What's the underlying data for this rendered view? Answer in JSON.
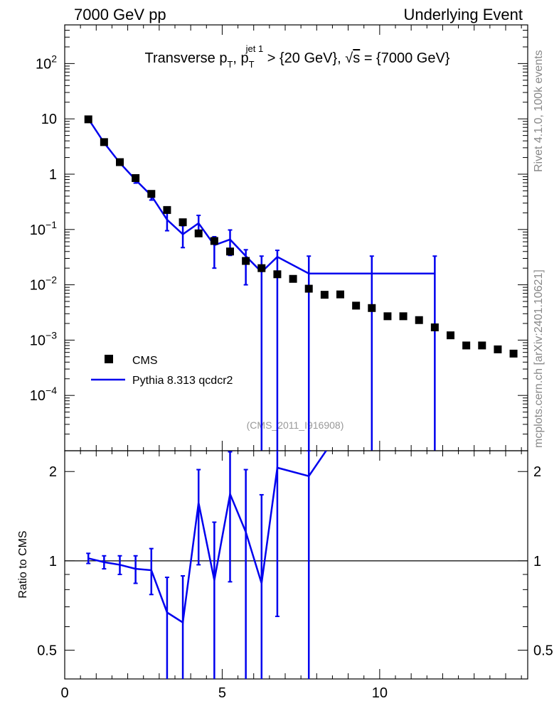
{
  "header": {
    "left": "7000 GeV pp",
    "right": "Underlying Event"
  },
  "side_labels": {
    "rivet": "Rivet 4.1.0,  100k events",
    "mcplots": "mcplots.cern.ch [arXiv:2401.10621]"
  },
  "analysis_id": "(CMS_2011_I916908)",
  "chart_data": [
    {
      "type": "scatter",
      "panel": "main",
      "title": "Transverse p_T, p_T^{jet 1} > {20 GeV}, √s = {7000 GeV}",
      "title_parts": {
        "t1": "Transverse p",
        "sub1": "T",
        "t2": ", p",
        "sup2": "jet 1",
        "sub2": "T",
        "t3": " > {20 GeV}, ",
        "sqrt": "√",
        "t4": "s",
        "t5": " = {7000 GeV}"
      },
      "yscale": "log",
      "ylim": [
        1e-05,
        500
      ],
      "xlim": [
        0,
        14.7
      ],
      "y_tick_labels": [
        {
          "value": 100,
          "base": "10",
          "exp": "2"
        },
        {
          "value": 10,
          "base": "10",
          "exp": ""
        },
        {
          "value": 1,
          "base": "1",
          "exp": ""
        },
        {
          "value": 0.1,
          "base": "10",
          "exp": "−1"
        },
        {
          "value": 0.01,
          "base": "10",
          "exp": "−2"
        },
        {
          "value": 0.001,
          "base": "10",
          "exp": "−3"
        },
        {
          "value": 0.0001,
          "base": "10",
          "exp": "−4"
        }
      ],
      "legend_position": "bottom-left",
      "series": [
        {
          "name": "CMS",
          "style": "markers",
          "color": "#000000",
          "x": [
            0.75,
            1.25,
            1.75,
            2.25,
            2.75,
            3.25,
            3.75,
            4.25,
            4.75,
            5.25,
            5.75,
            6.25,
            6.75,
            7.25,
            7.75,
            8.25,
            8.75,
            9.25,
            9.75,
            10.25,
            10.75,
            11.25,
            11.75,
            12.25,
            12.75,
            13.25,
            13.75,
            14.25
          ],
          "y": [
            9.8,
            3.8,
            1.65,
            0.85,
            0.44,
            0.225,
            0.135,
            0.085,
            0.062,
            0.04,
            0.027,
            0.02,
            0.0155,
            0.0128,
            0.0085,
            0.0066,
            0.0067,
            0.0042,
            0.0038,
            0.0027,
            0.0027,
            0.0023,
            0.0017,
            0.00122,
            0.0008,
            0.0008,
            0.00068,
            0.00057
          ]
        },
        {
          "name": "Pythia 8.313 qcdcr2",
          "style": "line",
          "color": "#0000ee",
          "x": [
            0.75,
            1.25,
            1.75,
            2.25,
            2.75,
            3.25,
            3.75,
            4.25,
            4.75,
            5.25,
            5.75,
            6.25,
            6.75,
            7.75,
            9.75,
            11.75
          ],
          "x_end": 11.75,
          "x_line_start": 7.75,
          "y": [
            10.0,
            3.7,
            1.6,
            0.79,
            0.41,
            0.15,
            0.082,
            0.13,
            0.052,
            0.066,
            0.033,
            0.017,
            0.032,
            0.016,
            0.016,
            0.016
          ],
          "y_err_low": [
            0.5,
            0.2,
            0.1,
            0.1,
            0.07,
            0.055,
            0.035,
            0.05,
            0.032,
            0.032,
            0.023,
            0.017,
            0.032,
            0.016,
            0.016,
            0.016
          ],
          "y_err_high": [
            0.5,
            0.2,
            0.1,
            0.1,
            0.07,
            0.055,
            0.035,
            0.05,
            0.022,
            0.032,
            0.01,
            0.016,
            0.01,
            0.017,
            0.017,
            0.017
          ]
        }
      ]
    },
    {
      "type": "line",
      "panel": "ratio",
      "ylabel": "Ratio to CMS",
      "yscale": "log",
      "ylim": [
        0.4,
        2.35
      ],
      "xlim": [
        0,
        14.7
      ],
      "y_tick_labels": [
        {
          "value": 2,
          "label": "2"
        },
        {
          "value": 1,
          "label": "1"
        },
        {
          "value": 0.5,
          "label": "0.5"
        }
      ],
      "x_tick_labels": [
        {
          "value": 0,
          "label": "0"
        },
        {
          "value": 5,
          "label": "5"
        },
        {
          "value": 10,
          "label": "10"
        }
      ],
      "reference_line": 1,
      "series": [
        {
          "name": "Pythia 8.313 qcdcr2 / CMS",
          "color": "#0000ee",
          "x": [
            0.75,
            1.25,
            1.75,
            2.25,
            2.75,
            3.25,
            3.75,
            4.25,
            4.75,
            5.25,
            5.75,
            6.25,
            6.75,
            7.75,
            8.3
          ],
          "y": [
            1.02,
            0.99,
            0.97,
            0.94,
            0.93,
            0.67,
            0.62,
            1.57,
            0.86,
            1.68,
            1.25,
            0.84,
            2.06,
            1.93,
            2.35
          ],
          "y_err_low": [
            0.04,
            0.05,
            0.07,
            0.1,
            0.16,
            0.29,
            0.32,
            0.6,
            0.51,
            0.83,
            0.88,
            0.84,
            1.41,
            1.93,
            0
          ],
          "y_err_high": [
            0.04,
            0.05,
            0.07,
            0.1,
            0.17,
            0.21,
            0.27,
            0.46,
            0.49,
            0.65,
            0.78,
            0.83,
            0.3,
            0.42,
            0
          ]
        }
      ]
    }
  ]
}
